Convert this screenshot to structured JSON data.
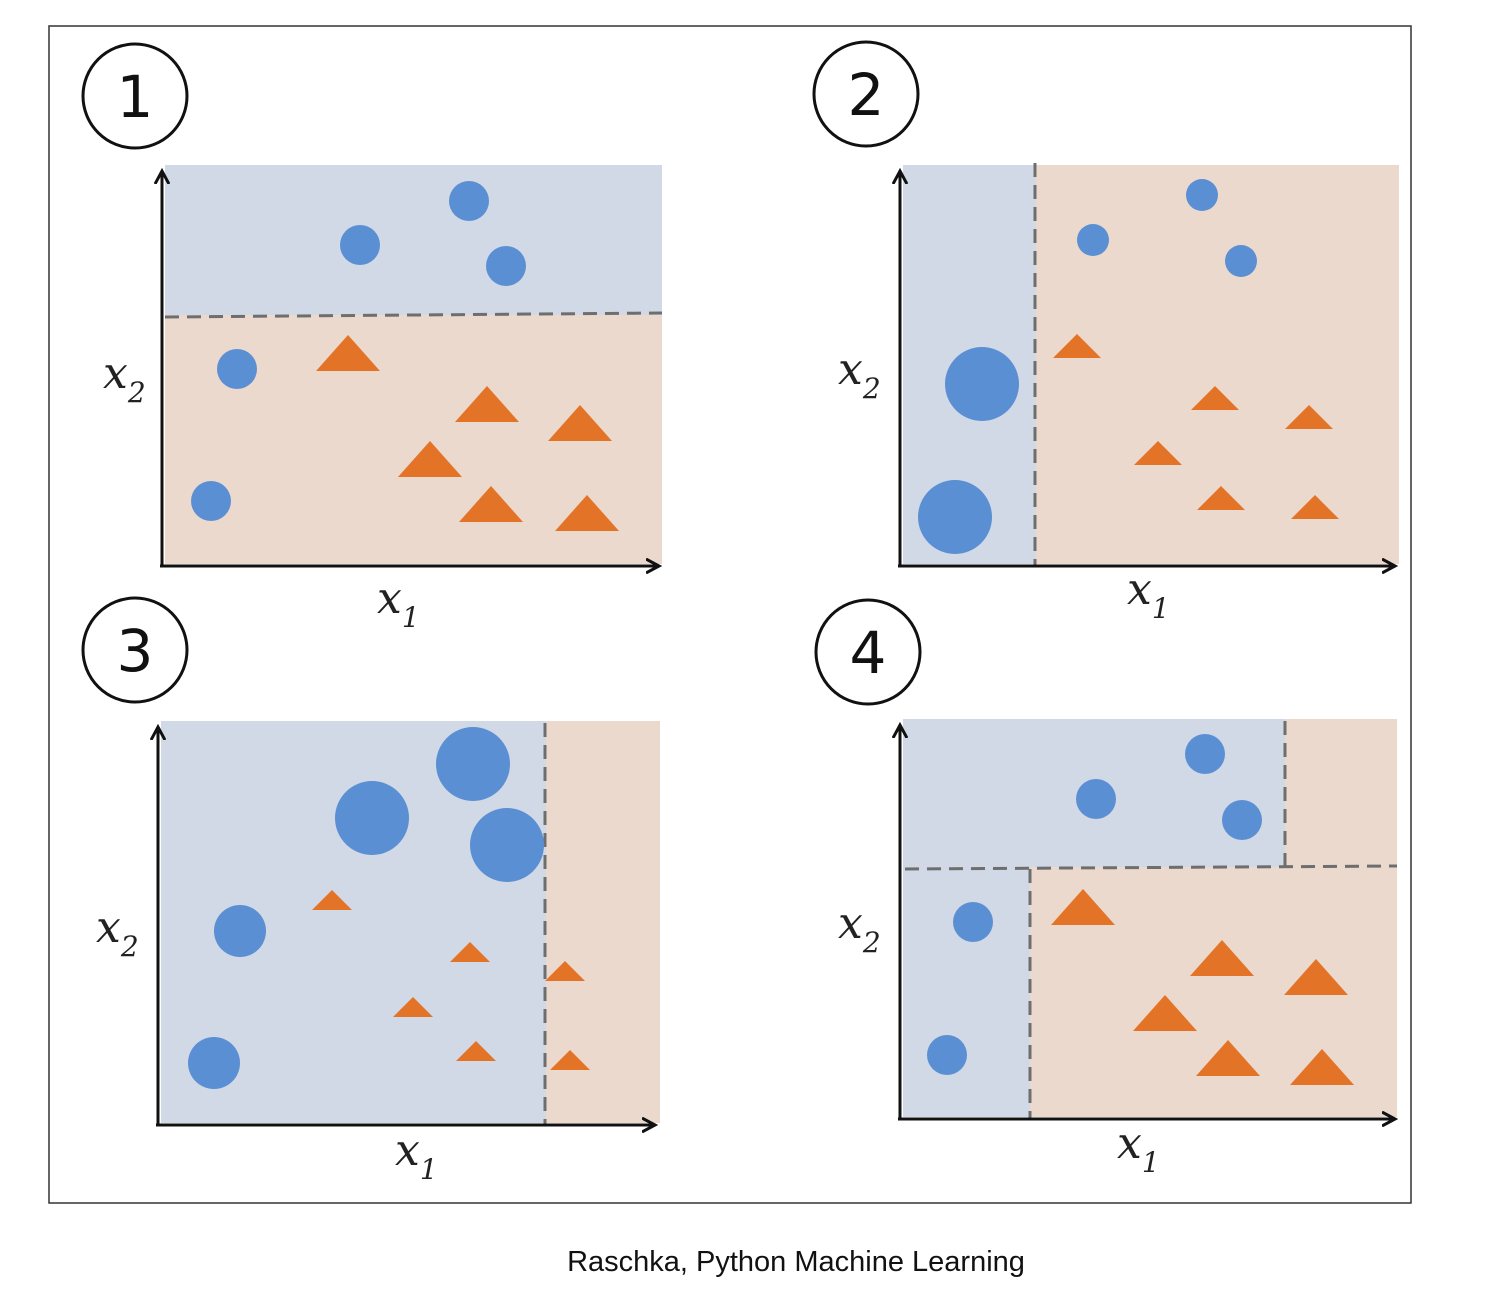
{
  "caption": "Raschka, Python Machine Learning",
  "colors": {
    "region_blue": "#d0d9e5",
    "region_orange": "#ecd9cd",
    "circle": "#5b8fd3",
    "triangle": "#e37327",
    "boundary": "#6e6e6e",
    "axis": "#111111"
  },
  "icons": {
    "circle_class": "circle-marker",
    "triangle_class": "triangle-marker"
  },
  "panels": [
    {
      "number": "1",
      "xlabel": "x",
      "xsub": "1",
      "ylabel": "x",
      "ysub": "2"
    },
    {
      "number": "2",
      "xlabel": "x",
      "xsub": "1",
      "ylabel": "x",
      "ysub": "2"
    },
    {
      "number": "3",
      "xlabel": "x",
      "xsub": "1",
      "ylabel": "x",
      "ysub": "2"
    },
    {
      "number": "4",
      "xlabel": "x",
      "xsub": "1",
      "ylabel": "x",
      "ysub": "2"
    }
  ]
}
